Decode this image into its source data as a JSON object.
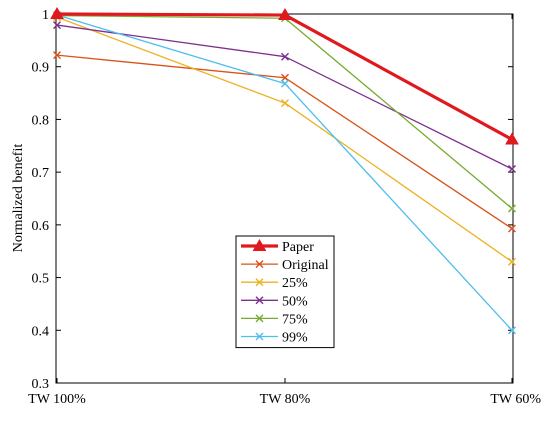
{
  "chart_data": {
    "type": "line",
    "title": "",
    "xlabel": "",
    "ylabel": "Normalized benefit",
    "categories": [
      "TW 100%",
      "TW 80%",
      "TW 60%"
    ],
    "ylim": [
      0.3,
      1.0
    ],
    "yticks": [
      "0.3",
      "0.4",
      "0.5",
      "0.6",
      "0.7",
      "0.8",
      "0.9",
      "1"
    ],
    "grid": false,
    "legend_position": "bottom-center",
    "series": [
      {
        "name": "Paper",
        "values": [
          1.0,
          0.998,
          0.762
        ],
        "color": "#e0191e",
        "marker": "triangle",
        "emphasis": true
      },
      {
        "name": "Original",
        "values": [
          0.922,
          0.879,
          0.593
        ],
        "color": "#d95319",
        "marker": "x"
      },
      {
        "name": "25%",
        "values": [
          0.994,
          0.831,
          0.53
        ],
        "color": "#edb120",
        "marker": "x"
      },
      {
        "name": "50%",
        "values": [
          0.979,
          0.919,
          0.706
        ],
        "color": "#7e2f8e",
        "marker": "x"
      },
      {
        "name": "75%",
        "values": [
          0.997,
          0.992,
          0.631
        ],
        "color": "#77ac30",
        "marker": "x"
      },
      {
        "name": "99%",
        "values": [
          0.998,
          0.868,
          0.4
        ],
        "color": "#4dbeee",
        "marker": "x"
      }
    ]
  }
}
